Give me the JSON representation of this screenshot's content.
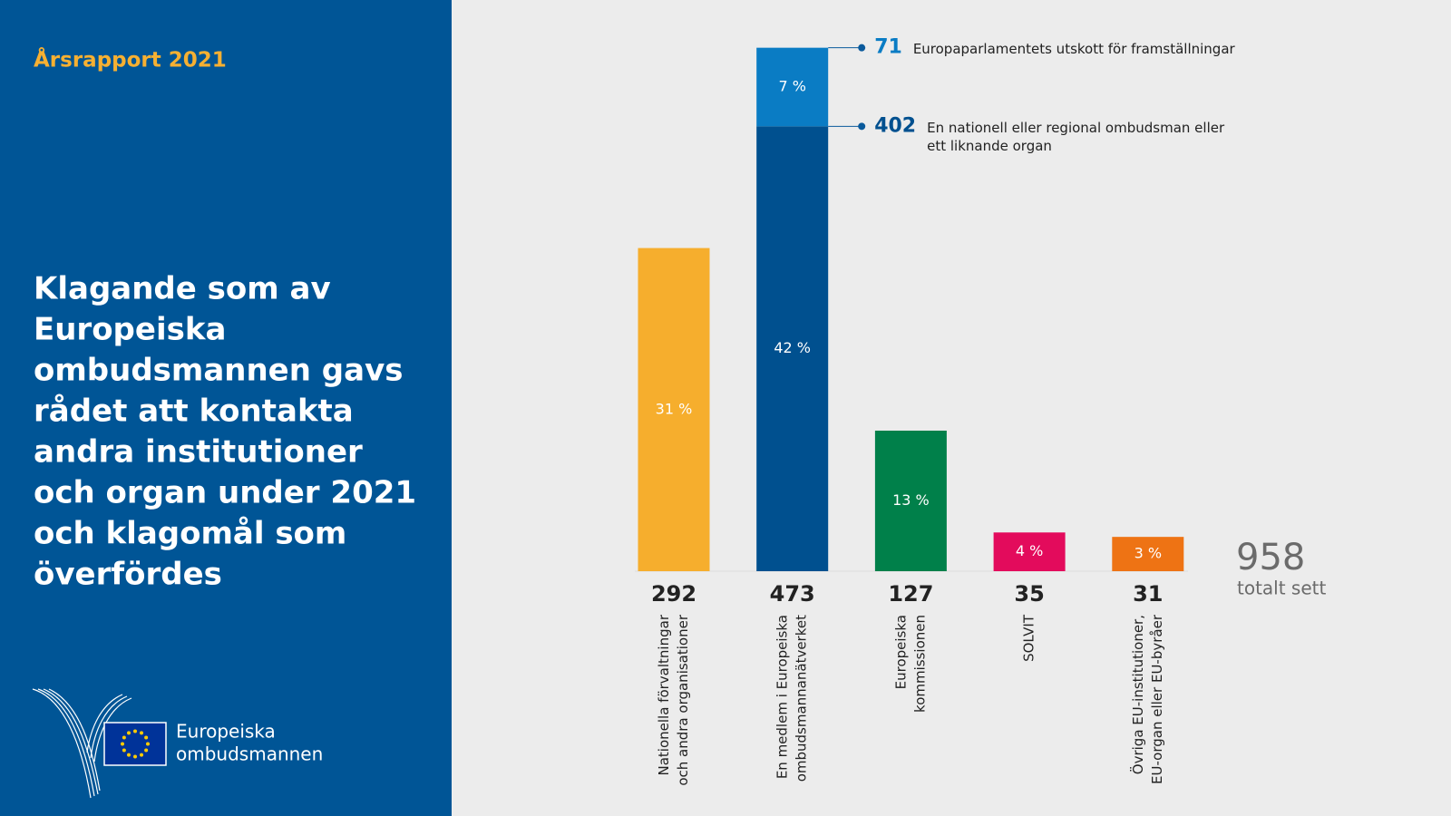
{
  "header": "Årsrapport 2021",
  "logo": [
    "Europeiska",
    "ombudsmannen"
  ],
  "chart_data": {
    "type": "bar",
    "title": [
      "Klagande som av",
      "Europeiska",
      "ombudsmannen gavs",
      "rådet att kontakta",
      "andra institutioner",
      "och organ under 2021",
      "och klagomål som",
      "överfördes"
    ],
    "bars": [
      {
        "label": [
          "Nationella förvaltningar",
          "och andra organisationer"
        ],
        "total": 292,
        "segments": [
          {
            "value": 292,
            "share": {
              "value": 31,
              "label": "31 %"
            },
            "color": "#f6ae2d"
          }
        ]
      },
      {
        "label": [
          "En medlem i Europeiska",
          "ombudsmannanätverket"
        ],
        "total": 473,
        "segments": [
          {
            "value": 402,
            "share": {
              "value": 42,
              "label": "42 %"
            },
            "color": "#00508f",
            "name": [
              "En nationell eller regional ombudsman eller",
              "ett liknande organ"
            ]
          },
          {
            "value": 71,
            "share": {
              "value": 7,
              "label": "7 %"
            },
            "color": "#0a7cc4",
            "name": [
              "Europaparlamentets utskott för framställningar"
            ]
          }
        ]
      },
      {
        "label": [
          "Europeiska",
          "kommissionen"
        ],
        "total": 127,
        "segments": [
          {
            "value": 127,
            "share": {
              "value": 13,
              "label": "13 %"
            },
            "color": "#00804a"
          }
        ]
      },
      {
        "label": [
          "SOLVIT"
        ],
        "total": 35,
        "segments": [
          {
            "value": 35,
            "share": {
              "value": 4,
              "label": "4 %"
            },
            "color": "#e30b5c"
          }
        ]
      },
      {
        "label": [
          "Övriga EU-institutioner,",
          "EU-organ eller EU-byråer"
        ],
        "total": 31,
        "segments": [
          {
            "value": 31,
            "share": {
              "value": 3,
              "label": "3 %"
            },
            "color": "#ee7314"
          }
        ]
      }
    ],
    "grand_total": {
      "value": 958,
      "label": "totalt sett"
    }
  }
}
